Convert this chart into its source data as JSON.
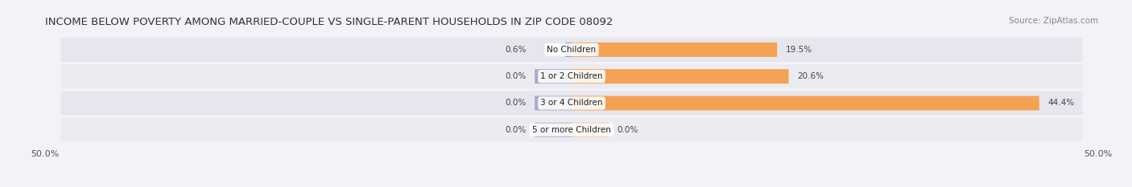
{
  "title": "INCOME BELOW POVERTY AMONG MARRIED-COUPLE VS SINGLE-PARENT HOUSEHOLDS IN ZIP CODE 08092",
  "source": "Source: ZipAtlas.com",
  "categories": [
    "No Children",
    "1 or 2 Children",
    "3 or 4 Children",
    "5 or more Children"
  ],
  "married_values": [
    0.6,
    0.0,
    0.0,
    0.0
  ],
  "single_values": [
    19.5,
    20.6,
    44.4,
    0.0
  ],
  "single_last_value": 0.0,
  "married_color": "#8888bb",
  "single_color": "#f5a155",
  "single_last_color": "#f5c89a",
  "background_color": "#f2f2f7",
  "bar_bg_color": "#e6e6ee",
  "bar_bg_alt_color": "#ebebf2",
  "xlim": 50.0,
  "title_fontsize": 9.5,
  "source_fontsize": 7.5,
  "label_fontsize": 7.5,
  "tick_fontsize": 8,
  "legend_fontsize": 8,
  "value_fontsize": 7.5
}
